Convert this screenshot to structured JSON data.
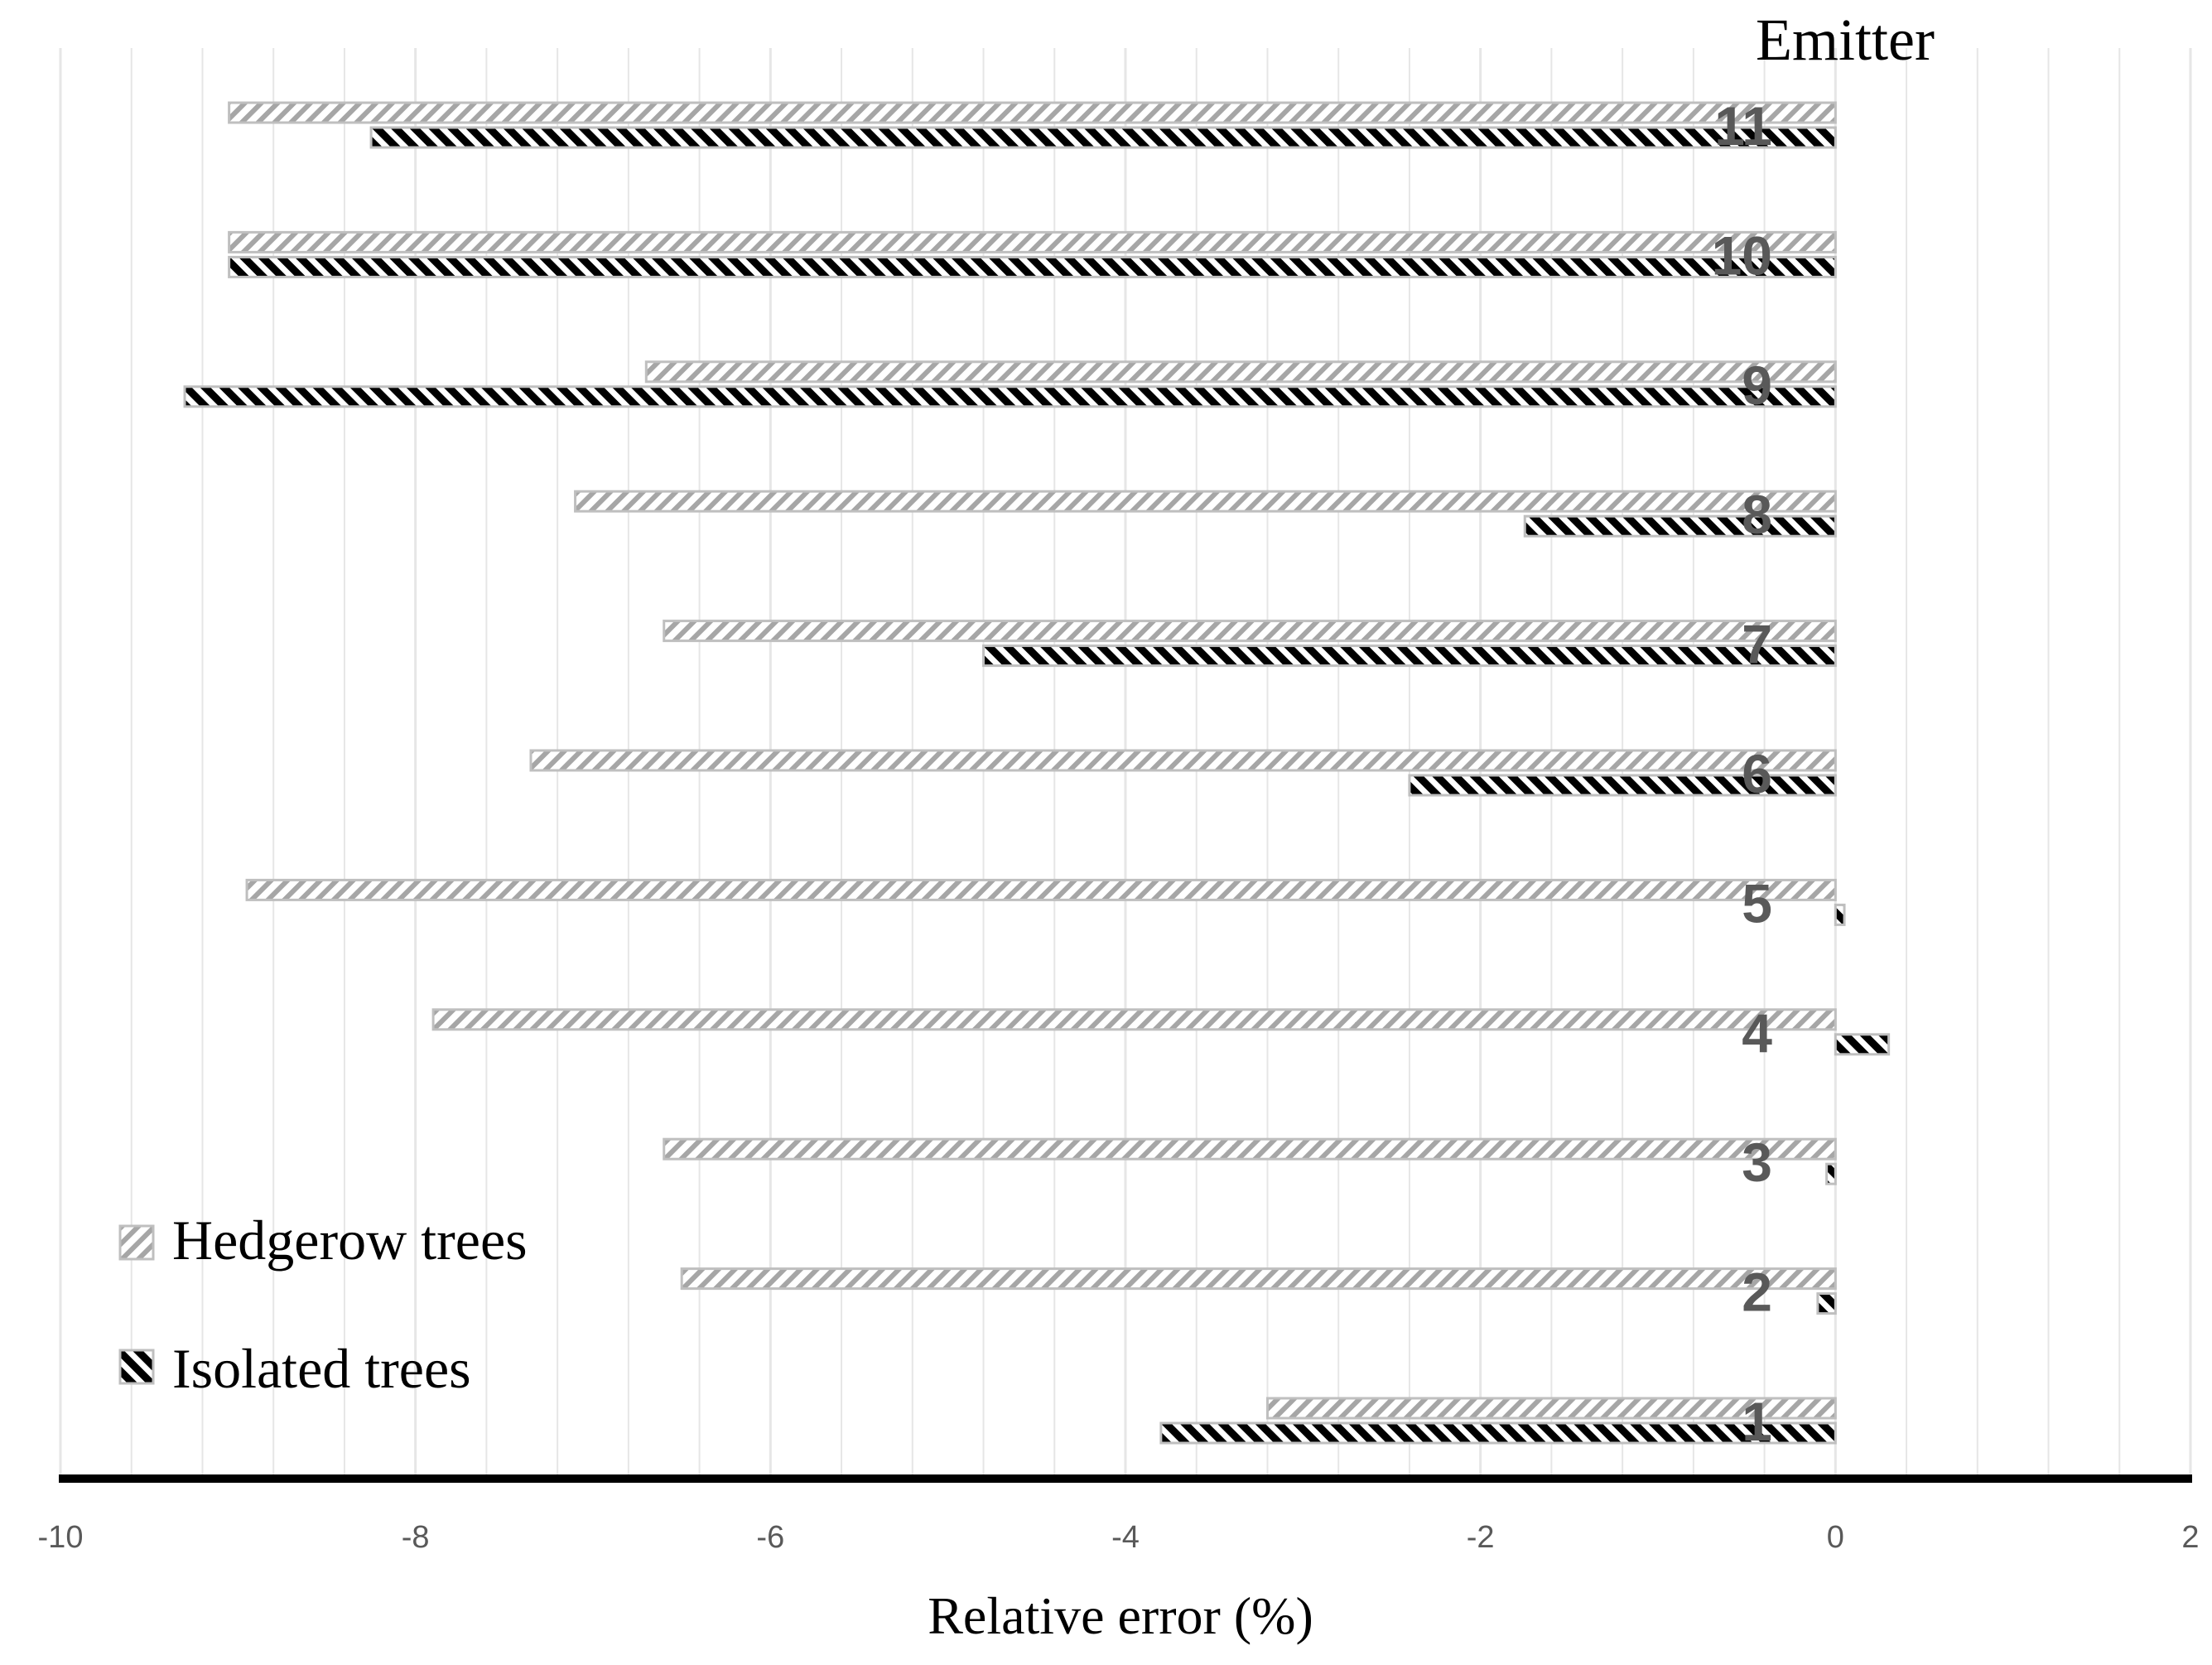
{
  "colors": {
    "hedgerow_stroke": "#bfbfbf",
    "hedgerow_hatch": "#a6a6a6",
    "isolated_hatch": "#000000",
    "grid": "#e6e6e6",
    "axis": "#000000",
    "tick_text": "#595959",
    "category_text": "#595959"
  },
  "chart_data": {
    "type": "bar",
    "orientation": "horizontal",
    "xlabel": "Relative error (%)",
    "category_axis_title": "Emitter",
    "categories": [
      "1",
      "2",
      "3",
      "4",
      "5",
      "6",
      "7",
      "8",
      "9",
      "10",
      "11"
    ],
    "series": [
      {
        "name": "Hedgerow trees",
        "pattern": "light diagonal hatch",
        "values": [
          -3.2,
          -6.5,
          -6.6,
          -7.9,
          -8.95,
          -7.35,
          -6.6,
          -7.1,
          -6.7,
          -9.05,
          -9.05
        ]
      },
      {
        "name": "Isolated trees",
        "pattern": "dark diagonal hatch",
        "values": [
          -3.8,
          -0.1,
          -0.05,
          0.3,
          0.05,
          -2.4,
          -4.8,
          -1.75,
          -9.3,
          -9.05,
          -8.25
        ]
      }
    ],
    "xlim": [
      -10,
      2
    ],
    "xticks": [
      "-10",
      "-8",
      "-6",
      "-4",
      "-2",
      "0",
      "2"
    ],
    "grid": "vertical minor and major",
    "legend_position": "bottom-left"
  }
}
